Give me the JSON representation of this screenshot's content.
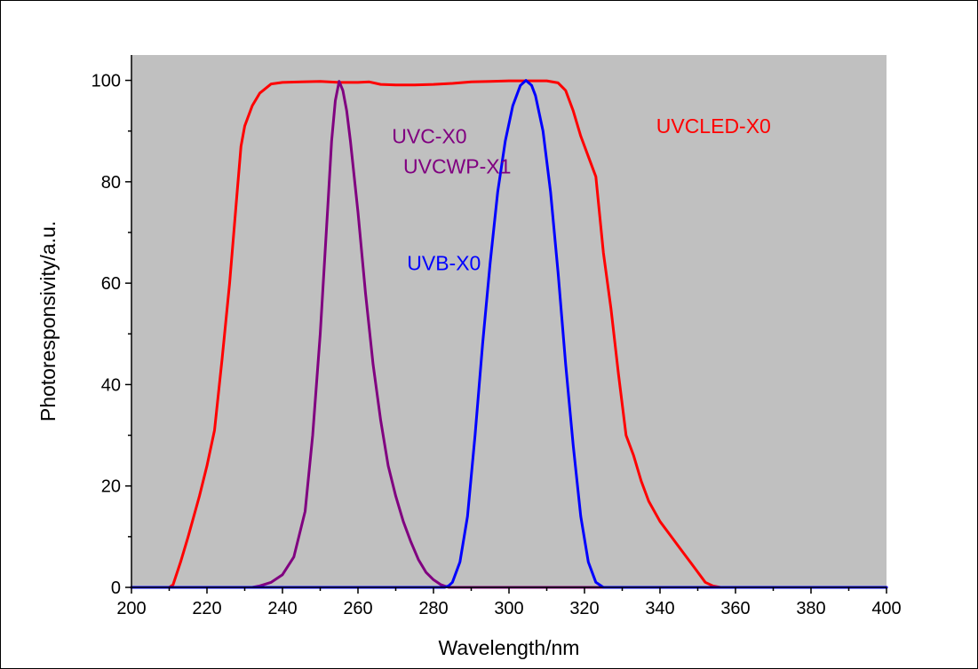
{
  "chart_data": {
    "type": "line",
    "title": "",
    "xlabel": "Wavelength/nm",
    "ylabel": "Photoresponsivity/a.u.",
    "xlim": [
      200,
      400
    ],
    "ylim": [
      0,
      105
    ],
    "x_ticks": [
      200,
      220,
      240,
      260,
      280,
      300,
      320,
      340,
      360,
      380,
      400
    ],
    "y_ticks": [
      0,
      20,
      40,
      60,
      80,
      100
    ],
    "grid": false,
    "plot_background": "#c0c0c0",
    "series": [
      {
        "name": "UVCLED-X0",
        "color": "#ff0000",
        "points": [
          [
            200,
            0
          ],
          [
            210,
            0
          ],
          [
            211,
            0.5
          ],
          [
            213,
            5
          ],
          [
            215,
            10
          ],
          [
            218,
            18
          ],
          [
            220,
            24
          ],
          [
            222,
            31
          ],
          [
            224,
            45
          ],
          [
            226,
            60
          ],
          [
            228,
            78
          ],
          [
            229,
            87
          ],
          [
            230,
            91
          ],
          [
            232,
            95
          ],
          [
            234,
            97.5
          ],
          [
            237,
            99.3
          ],
          [
            240,
            99.6
          ],
          [
            245,
            99.7
          ],
          [
            250,
            99.8
          ],
          [
            255,
            99.6
          ],
          [
            260,
            99.6
          ],
          [
            263,
            99.7
          ],
          [
            266,
            99.2
          ],
          [
            270,
            99.1
          ],
          [
            275,
            99.1
          ],
          [
            280,
            99.2
          ],
          [
            285,
            99.4
          ],
          [
            290,
            99.7
          ],
          [
            295,
            99.8
          ],
          [
            300,
            99.9
          ],
          [
            305,
            99.9
          ],
          [
            310,
            99.9
          ],
          [
            313,
            99.5
          ],
          [
            315,
            98
          ],
          [
            317,
            94
          ],
          [
            319,
            89
          ],
          [
            321,
            85
          ],
          [
            323,
            81
          ],
          [
            325,
            66
          ],
          [
            327,
            55
          ],
          [
            329,
            42
          ],
          [
            331,
            30
          ],
          [
            333,
            26
          ],
          [
            335,
            21
          ],
          [
            337,
            17
          ],
          [
            340,
            13
          ],
          [
            343,
            10
          ],
          [
            346,
            7
          ],
          [
            349,
            4
          ],
          [
            352,
            1
          ],
          [
            354,
            0.3
          ],
          [
            356,
            0
          ],
          [
            400,
            0
          ]
        ]
      },
      {
        "name": "UVC-X0\nUVCWP-X1",
        "color": "#800080",
        "points": [
          [
            200,
            0
          ],
          [
            232,
            0
          ],
          [
            234,
            0.3
          ],
          [
            237,
            1
          ],
          [
            240,
            2.5
          ],
          [
            243,
            6
          ],
          [
            246,
            15
          ],
          [
            248,
            30
          ],
          [
            250,
            50
          ],
          [
            252,
            75
          ],
          [
            253,
            88
          ],
          [
            254,
            96
          ],
          [
            255,
            99.8
          ],
          [
            256,
            98
          ],
          [
            257,
            94
          ],
          [
            258,
            88
          ],
          [
            260,
            74
          ],
          [
            262,
            58
          ],
          [
            264,
            44
          ],
          [
            266,
            33
          ],
          [
            268,
            24
          ],
          [
            270,
            18
          ],
          [
            272,
            13
          ],
          [
            274,
            9
          ],
          [
            276,
            5.5
          ],
          [
            278,
            3
          ],
          [
            280,
            1.5
          ],
          [
            282,
            0.5
          ],
          [
            284,
            0
          ],
          [
            400,
            0
          ]
        ]
      },
      {
        "name": "UVB-X0",
        "color": "#0000ff",
        "points": [
          [
            200,
            0
          ],
          [
            283,
            0
          ],
          [
            284,
            0.3
          ],
          [
            285,
            1
          ],
          [
            287,
            5
          ],
          [
            289,
            14
          ],
          [
            291,
            30
          ],
          [
            293,
            48
          ],
          [
            295,
            64
          ],
          [
            297,
            78
          ],
          [
            299,
            88
          ],
          [
            301,
            95
          ],
          [
            303,
            99
          ],
          [
            304.5,
            100
          ],
          [
            306,
            99
          ],
          [
            307,
            97
          ],
          [
            309,
            90
          ],
          [
            311,
            78
          ],
          [
            313,
            62
          ],
          [
            315,
            44
          ],
          [
            317,
            28
          ],
          [
            319,
            14
          ],
          [
            321,
            5
          ],
          [
            323,
            1
          ],
          [
            325,
            0
          ],
          [
            400,
            0
          ]
        ]
      }
    ],
    "annotations": [
      {
        "text": "UVCLED-X0",
        "x": 339,
        "y": 91,
        "color": "#ff0000"
      },
      {
        "text": "UVC-X0",
        "x": 269,
        "y": 89,
        "color": "#800080"
      },
      {
        "text": "UVCWP-X1",
        "x": 272,
        "y": 83,
        "color": "#800080"
      },
      {
        "text": "UVB-X0",
        "x": 273,
        "y": 64,
        "color": "#0000ff"
      }
    ]
  }
}
